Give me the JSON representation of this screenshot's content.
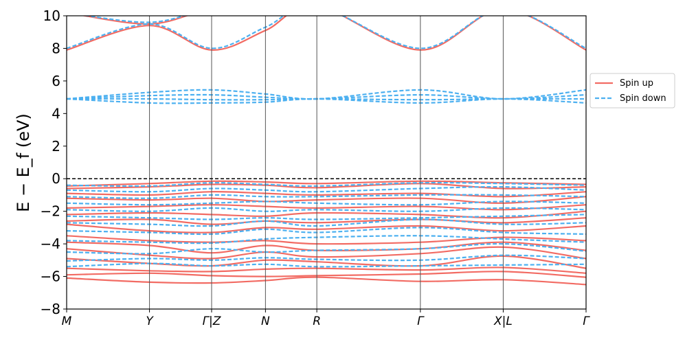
{
  "chart_data": {
    "type": "line",
    "title": "",
    "xlabel": "",
    "ylabel": "E − E_f (eV)",
    "ylim": [
      -8,
      10
    ],
    "yticks": [
      "−8",
      "−6",
      "−4",
      "−2",
      "0",
      "2",
      "4",
      "6",
      "8",
      "10"
    ],
    "ytick_values": [
      -8,
      -6,
      -4,
      -2,
      0,
      2,
      4,
      6,
      8,
      10
    ],
    "kpath": [
      {
        "label": "M",
        "x": 0.0
      },
      {
        "label": "Y",
        "x": 1.0
      },
      {
        "label": "Γ|Z",
        "x": 1.75
      },
      {
        "label": "N",
        "x": 2.4
      },
      {
        "label": "R",
        "x": 3.02
      },
      {
        "label": "Γ",
        "x": 4.27
      },
      {
        "label": "X|L",
        "x": 5.27
      },
      {
        "label": "Γ",
        "x": 6.27
      }
    ],
    "xlim": [
      0,
      6.27
    ],
    "fermi_level": 0,
    "grid": false,
    "legend_position": "right",
    "series": [
      {
        "name": "Spin up",
        "color": "#f26b63",
        "style": "solid",
        "bands": [
          [
            -6.1,
            -6.35,
            -6.4,
            -6.25,
            -6.05,
            -6.3,
            -6.2,
            -6.5
          ],
          [
            -5.9,
            -5.8,
            -5.95,
            -6.0,
            -5.95,
            -5.85,
            -5.7,
            -6.05
          ],
          [
            -5.5,
            -5.65,
            -5.7,
            -5.55,
            -5.5,
            -5.6,
            -5.45,
            -5.8
          ],
          [
            -4.9,
            -5.2,
            -5.35,
            -5.0,
            -5.1,
            -5.35,
            -4.75,
            -5.5
          ],
          [
            -4.3,
            -4.7,
            -4.9,
            -4.5,
            -4.8,
            -4.6,
            -4.2,
            -4.9
          ],
          [
            -3.9,
            -4.1,
            -4.55,
            -4.1,
            -4.4,
            -4.3,
            -3.9,
            -4.4
          ],
          [
            -3.5,
            -3.8,
            -3.9,
            -3.8,
            -4.0,
            -3.9,
            -3.6,
            -3.8
          ],
          [
            -2.8,
            -3.2,
            -3.3,
            -3.0,
            -3.1,
            -2.9,
            -3.2,
            -2.9
          ],
          [
            -2.6,
            -2.5,
            -2.8,
            -2.6,
            -2.7,
            -2.5,
            -2.7,
            -2.4
          ],
          [
            -2.2,
            -2.1,
            -2.2,
            -2.3,
            -2.1,
            -2.2,
            -2.4,
            -2.0
          ],
          [
            -1.8,
            -1.7,
            -1.6,
            -1.7,
            -1.8,
            -1.7,
            -1.9,
            -1.6
          ],
          [
            -1.2,
            -1.3,
            -1.2,
            -1.4,
            -1.3,
            -1.2,
            -1.5,
            -1.1
          ],
          [
            -0.9,
            -1.0,
            -0.8,
            -0.9,
            -1.0,
            -0.9,
            -1.1,
            -0.8
          ],
          [
            -0.6,
            -0.5,
            -0.35,
            -0.4,
            -0.55,
            -0.3,
            -0.6,
            -0.5
          ],
          [
            -0.45,
            -0.3,
            -0.15,
            -0.2,
            -0.3,
            -0.15,
            -0.25,
            -0.35
          ],
          [
            7.9,
            9.4,
            7.9,
            9.1,
            10.6,
            7.9,
            10.4,
            7.9
          ],
          [
            10.2,
            9.5,
            10.4,
            10.2,
            11.2,
            10.4,
            11.2,
            10.4
          ]
        ]
      },
      {
        "name": "Spin down",
        "color": "#4cb0f0",
        "style": "dashed",
        "bands": [
          [
            -5.4,
            -5.2,
            -5.35,
            -5.25,
            -5.4,
            -5.35,
            -5.3,
            -5.25
          ],
          [
            -5.05,
            -4.9,
            -5.0,
            -4.85,
            -4.95,
            -5.0,
            -4.7,
            -4.9
          ],
          [
            -4.5,
            -4.6,
            -4.3,
            -4.5,
            -4.4,
            -4.3,
            -4.0,
            -4.45
          ],
          [
            -3.8,
            -3.9,
            -3.95,
            -3.7,
            -3.6,
            -3.5,
            -3.7,
            -3.9
          ],
          [
            -3.2,
            -3.3,
            -3.4,
            -3.1,
            -3.3,
            -3.0,
            -3.3,
            -3.4
          ],
          [
            -2.7,
            -2.8,
            -2.9,
            -2.6,
            -2.9,
            -2.5,
            -2.8,
            -2.7
          ],
          [
            -2.3,
            -2.4,
            -2.5,
            -2.4,
            -2.5,
            -2.4,
            -2.3,
            -2.2
          ],
          [
            -1.9,
            -2.0,
            -1.8,
            -2.0,
            -1.9,
            -2.0,
            -1.8,
            -1.9
          ],
          [
            -1.5,
            -1.6,
            -1.5,
            -1.4,
            -1.5,
            -1.6,
            -1.4,
            -1.5
          ],
          [
            -1.1,
            -1.2,
            -1.0,
            -1.1,
            -1.1,
            -1.0,
            -1.0,
            -1.1
          ],
          [
            -0.7,
            -0.8,
            -0.6,
            -0.7,
            -0.8,
            -0.6,
            -0.5,
            -0.7
          ],
          [
            -0.4,
            -0.45,
            -0.25,
            -0.35,
            -0.45,
            -0.25,
            -0.3,
            -0.4
          ],
          [
            4.9,
            4.65,
            4.65,
            4.7,
            4.9,
            4.65,
            4.9,
            4.65
          ],
          [
            4.9,
            4.9,
            4.85,
            4.85,
            4.9,
            4.85,
            4.9,
            4.9
          ],
          [
            4.9,
            5.1,
            5.15,
            5.0,
            4.9,
            5.15,
            4.9,
            5.15
          ],
          [
            4.9,
            5.3,
            5.45,
            5.2,
            4.9,
            5.45,
            4.9,
            5.45
          ],
          [
            8.0,
            9.5,
            8.0,
            9.3,
            10.6,
            8.0,
            10.4,
            8.0
          ],
          [
            10.2,
            9.6,
            10.4,
            10.2,
            11.2,
            10.4,
            11.2,
            10.4
          ]
        ]
      }
    ]
  }
}
